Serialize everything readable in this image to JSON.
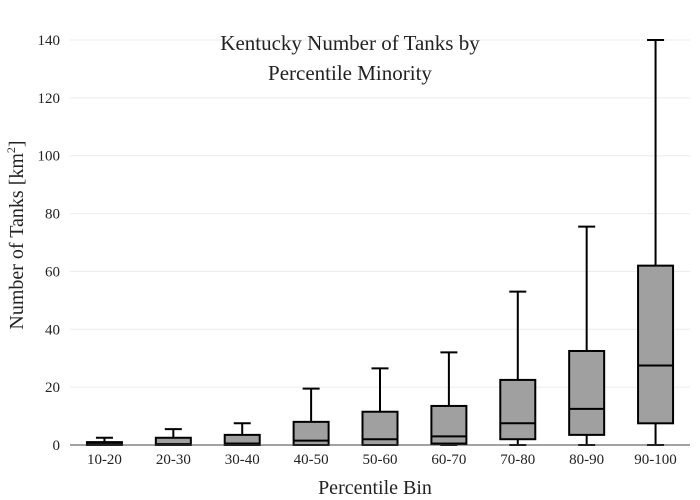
{
  "chart_data": {
    "type": "box",
    "title": [
      "Kentucky Number of Tanks by",
      "Percentile Minority"
    ],
    "xlabel": "Percentile Bin",
    "ylabel": {
      "main": "Number of Tanks  [km",
      "superscript": "2",
      "close": "]"
    },
    "ylim": [
      0,
      140
    ],
    "yticks": [
      0,
      20,
      40,
      60,
      80,
      100,
      120,
      140
    ],
    "grid": true,
    "box_color": "#a0a0a0",
    "line_color": "#000000",
    "categories": [
      "10-20",
      "20-30",
      "30-40",
      "40-50",
      "50-60",
      "60-70",
      "70-80",
      "80-90",
      "90-100"
    ],
    "boxes": [
      {
        "min": 0,
        "q1": 0,
        "median": 0.3,
        "q3": 1,
        "max": 2.5
      },
      {
        "min": 0,
        "q1": 0,
        "median": 0.3,
        "q3": 2.5,
        "max": 5.5
      },
      {
        "min": 0,
        "q1": 0,
        "median": 0.5,
        "q3": 3.5,
        "max": 7.5
      },
      {
        "min": 0,
        "q1": 0,
        "median": 1.5,
        "q3": 8,
        "max": 19.5
      },
      {
        "min": 0,
        "q1": 0,
        "median": 2,
        "q3": 11.5,
        "max": 26.5
      },
      {
        "min": 0,
        "q1": 0.5,
        "median": 3,
        "q3": 13.5,
        "max": 32
      },
      {
        "min": 0,
        "q1": 2,
        "median": 7.5,
        "q3": 22.5,
        "max": 53
      },
      {
        "min": 0,
        "q1": 3.5,
        "median": 12.5,
        "q3": 32.5,
        "max": 75.5
      },
      {
        "min": 0,
        "q1": 7.5,
        "median": 27.5,
        "q3": 62,
        "max": 140
      }
    ]
  }
}
